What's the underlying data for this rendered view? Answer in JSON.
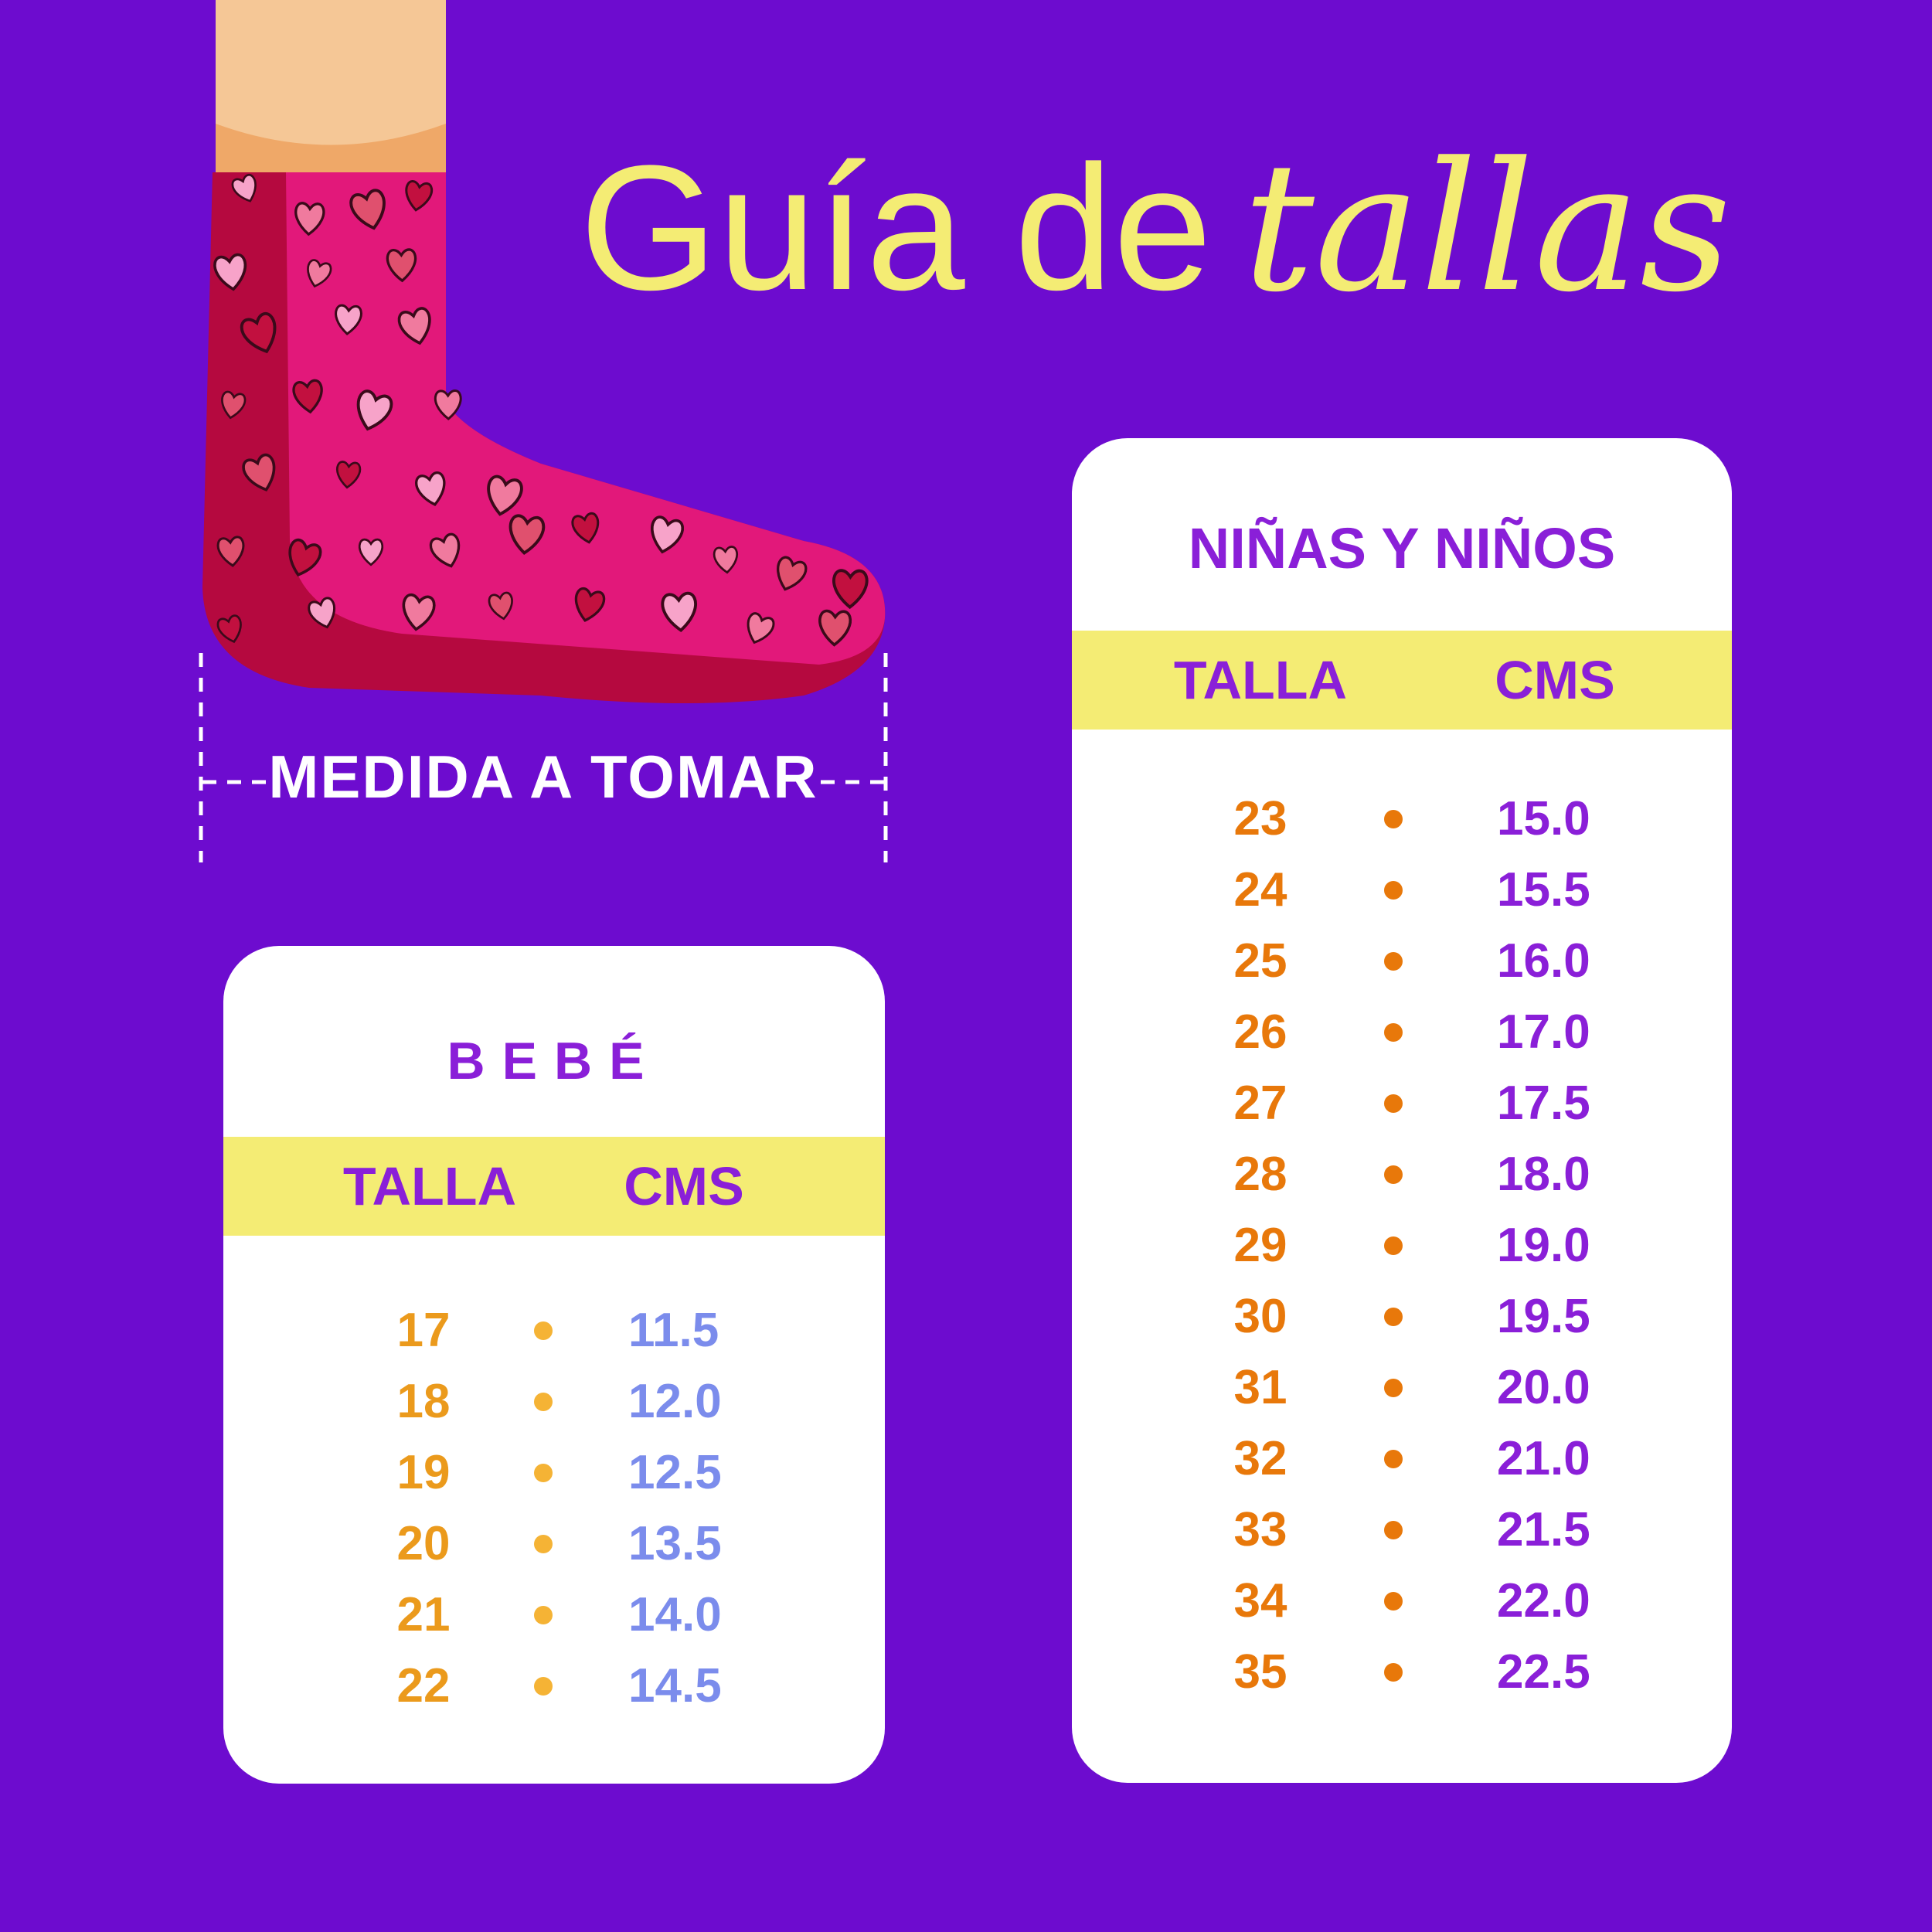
{
  "title": {
    "part1": "Guía de",
    "part2": "tallas"
  },
  "measure_label": "MEDIDA A TOMAR",
  "colors": {
    "background": "#6d0ccf",
    "yellow": "#f4ec74",
    "purple": "#8a1fd8",
    "orange": "#e8780a",
    "bebe_size": "#eb9a1c",
    "bebe_dot": "#f5b335",
    "bebe_cm": "#7b8cec",
    "sock": "#e2187a"
  },
  "kids_table": {
    "title": "NIÑAS Y NIÑOS",
    "col_talla": "TALLA",
    "col_cms": "CMS",
    "rows": [
      {
        "talla": "23",
        "cms": "15.0"
      },
      {
        "talla": "24",
        "cms": "15.5"
      },
      {
        "talla": "25",
        "cms": "16.0"
      },
      {
        "talla": "26",
        "cms": "17.0"
      },
      {
        "talla": "27",
        "cms": "17.5"
      },
      {
        "talla": "28",
        "cms": "18.0"
      },
      {
        "talla": "29",
        "cms": "19.0"
      },
      {
        "talla": "30",
        "cms": "19.5"
      },
      {
        "talla": "31",
        "cms": "20.0"
      },
      {
        "talla": "32",
        "cms": "21.0"
      },
      {
        "talla": "33",
        "cms": "21.5"
      },
      {
        "talla": "34",
        "cms": "22.0"
      },
      {
        "talla": "35",
        "cms": "22.5"
      }
    ]
  },
  "baby_table": {
    "title": "BEBÉ",
    "col_talla": "TALLA",
    "col_cms": "CMS",
    "rows": [
      {
        "talla": "17",
        "cms": "11.5"
      },
      {
        "talla": "18",
        "cms": "12.0"
      },
      {
        "talla": "19",
        "cms": "12.5"
      },
      {
        "talla": "20",
        "cms": "13.5"
      },
      {
        "talla": "21",
        "cms": "14.0"
      },
      {
        "talla": "22",
        "cms": "14.5"
      }
    ]
  }
}
